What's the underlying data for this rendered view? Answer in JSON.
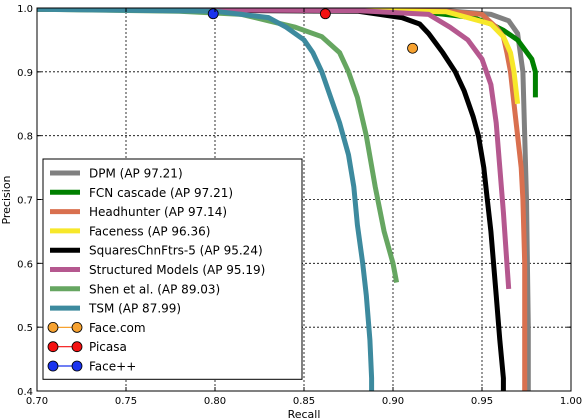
{
  "chart_data": {
    "type": "line",
    "title": "",
    "xlabel": "Recall",
    "ylabel": "Precision",
    "xlim": [
      0.7,
      1.0
    ],
    "ylim": [
      0.4,
      1.0
    ],
    "xticks": [
      0.7,
      0.75,
      0.8,
      0.85,
      0.9,
      0.95,
      1.0
    ],
    "xtick_labels": [
      "0.70",
      "0.75",
      "0.80",
      "0.85",
      "0.90",
      "0.95",
      "1.00"
    ],
    "yticks": [
      0.4,
      0.5,
      0.6,
      0.7,
      0.8,
      0.9,
      1.0
    ],
    "ytick_labels": [
      "0.4",
      "0.5",
      "0.6",
      "0.7",
      "0.8",
      "0.9",
      "1.0"
    ],
    "grid": true,
    "legend_position": "bottom-left",
    "series": [
      {
        "name": "DPM (AP 97.21)",
        "color": "#808080",
        "x": [
          0.7,
          0.85,
          0.93,
          0.955,
          0.965,
          0.97,
          0.973,
          0.975,
          0.976,
          0.976
        ],
        "y": [
          0.998,
          0.998,
          0.996,
          0.99,
          0.98,
          0.96,
          0.9,
          0.7,
          0.5,
          0.4
        ]
      },
      {
        "name": "FCN cascade (AP 97.21)",
        "color": "#008000",
        "x": [
          0.7,
          0.85,
          0.92,
          0.945,
          0.955,
          0.962,
          0.97,
          0.978,
          0.98,
          0.98
        ],
        "y": [
          0.998,
          0.997,
          0.993,
          0.985,
          0.975,
          0.965,
          0.95,
          0.92,
          0.9,
          0.86
        ]
      },
      {
        "name": "Headhunter (AP 97.14)",
        "color": "#d9704f",
        "x": [
          0.7,
          0.85,
          0.93,
          0.95,
          0.958,
          0.962,
          0.964,
          0.966,
          0.968,
          0.97,
          0.972,
          0.973,
          0.974,
          0.974
        ],
        "y": [
          0.998,
          0.997,
          0.995,
          0.99,
          0.97,
          0.955,
          0.93,
          0.9,
          0.85,
          0.8,
          0.75,
          0.7,
          0.6,
          0.4
        ]
      },
      {
        "name": "Faceness (AP 96.36)",
        "color": "#f7e82a",
        "x": [
          0.7,
          0.85,
          0.93,
          0.955,
          0.962,
          0.966,
          0.968,
          0.97
        ],
        "y": [
          0.998,
          0.997,
          0.994,
          0.975,
          0.955,
          0.93,
          0.9,
          0.85
        ]
      },
      {
        "name": "SquaresChnFtrs-5 (AP 95.24)",
        "color": "#000000",
        "x": [
          0.7,
          0.88,
          0.905,
          0.915,
          0.92,
          0.928,
          0.935,
          0.94,
          0.945,
          0.948,
          0.951,
          0.953,
          0.955,
          0.958,
          0.96,
          0.962,
          0.962
        ],
        "y": [
          0.998,
          0.995,
          0.985,
          0.975,
          0.96,
          0.93,
          0.9,
          0.87,
          0.83,
          0.8,
          0.75,
          0.7,
          0.65,
          0.55,
          0.48,
          0.42,
          0.4
        ]
      },
      {
        "name": "Structured Models  (AP 95.19)",
        "color": "#b5588f",
        "x": [
          0.7,
          0.88,
          0.92,
          0.932,
          0.942,
          0.95,
          0.955,
          0.958,
          0.96,
          0.962,
          0.964,
          0.965
        ],
        "y": [
          0.998,
          0.996,
          0.99,
          0.97,
          0.95,
          0.92,
          0.88,
          0.82,
          0.75,
          0.68,
          0.6,
          0.56
        ]
      },
      {
        "name": "Shen et al.  (AP 89.03)",
        "color": "#66a661",
        "x": [
          0.7,
          0.78,
          0.815,
          0.83,
          0.845,
          0.86,
          0.87,
          0.875,
          0.88,
          0.885,
          0.89,
          0.895,
          0.9,
          0.902
        ],
        "y": [
          0.998,
          0.995,
          0.99,
          0.98,
          0.97,
          0.955,
          0.93,
          0.9,
          0.86,
          0.8,
          0.72,
          0.65,
          0.6,
          0.57
        ]
      },
      {
        "name": "TSM  (AP 87.99)",
        "color": "#3d8a9e",
        "x": [
          0.7,
          0.8,
          0.83,
          0.84,
          0.85,
          0.855,
          0.86,
          0.865,
          0.87,
          0.875,
          0.878,
          0.88,
          0.883,
          0.885,
          0.887,
          0.888,
          0.888
        ],
        "y": [
          0.998,
          0.995,
          0.985,
          0.97,
          0.95,
          0.93,
          0.9,
          0.86,
          0.82,
          0.77,
          0.72,
          0.66,
          0.6,
          0.55,
          0.48,
          0.42,
          0.4
        ]
      }
    ],
    "points": [
      {
        "name": "Face.com",
        "color": "#f7a230",
        "x": 0.911,
        "y": 0.937
      },
      {
        "name": "Picasa",
        "color": "#f41111",
        "x": 0.862,
        "y": 0.991
      },
      {
        "name": "Face++",
        "color": "#1a33ee",
        "x": 0.799,
        "y": 0.991
      }
    ]
  }
}
